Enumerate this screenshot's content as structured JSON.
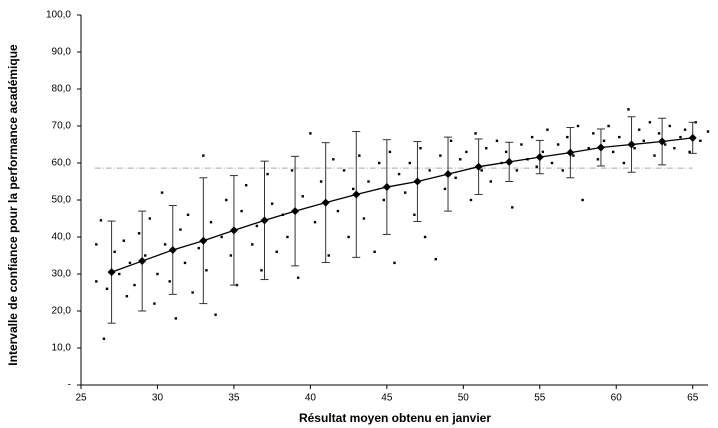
{
  "chart_data": {
    "type": "scatter",
    "x_label": "Résultat moyen obtenu en janvier",
    "y_label": "Intervalle de confiance pour la performance académique",
    "xlim": [
      25,
      66
    ],
    "xticks": [
      25,
      30,
      35,
      40,
      45,
      50,
      55,
      60,
      65
    ],
    "ylim": [
      0,
      100
    ],
    "yticks": [
      {
        "value": 0,
        "label": "-"
      },
      {
        "value": 10,
        "label": "10,0"
      },
      {
        "value": 20,
        "label": "20,0"
      },
      {
        "value": 30,
        "label": "30,0"
      },
      {
        "value": 40,
        "label": "40,0"
      },
      {
        "value": 50,
        "label": "50,0"
      },
      {
        "value": 60,
        "label": "60,0"
      },
      {
        "value": 70,
        "label": "70,0"
      },
      {
        "value": 80,
        "label": "80,0"
      },
      {
        "value": 90,
        "label": "90,0"
      },
      {
        "value": 100,
        "label": "100,0"
      }
    ],
    "reference_line": {
      "value": 58.6,
      "x": [
        25.9,
        65
      ],
      "color": "#aaaaaa"
    },
    "points": {
      "color": "#000000",
      "x": [
        26,
        26,
        26.3,
        26.5,
        26.7,
        27.2,
        27.5,
        27.8,
        28,
        28.2,
        28.5,
        28.8,
        29.2,
        29.5,
        29.8,
        30,
        30.3,
        30.5,
        30.8,
        31.2,
        31.5,
        31.8,
        32,
        32.3,
        32.7,
        33,
        33.2,
        33.5,
        33.8,
        34.2,
        34.5,
        34.8,
        35.2,
        35.5,
        35.8,
        36.2,
        36.5,
        36.8,
        37.2,
        37.5,
        37.8,
        38.2,
        38.5,
        38.8,
        39.2,
        39.5,
        40,
        40.3,
        40.7,
        41.2,
        41.5,
        41.8,
        42.2,
        42.5,
        42.8,
        43.2,
        43.5,
        43.8,
        44.2,
        44.5,
        44.8,
        45.2,
        45.5,
        45.8,
        46.2,
        46.5,
        46.8,
        47.2,
        47.5,
        47.8,
        48.2,
        48.5,
        48.8,
        49.2,
        49.5,
        49.8,
        50.2,
        50.5,
        50.8,
        51.2,
        51.5,
        51.8,
        52.2,
        52.5,
        52.8,
        53.2,
        53.5,
        53.8,
        54.2,
        54.5,
        54.8,
        55.2,
        55.5,
        55.8,
        56.2,
        56.5,
        56.8,
        57.2,
        57.5,
        57.8,
        58.2,
        58.5,
        58.8,
        59.2,
        59.5,
        59.8,
        60.2,
        60.5,
        60.8,
        61.2,
        61.5,
        61.8,
        62.2,
        62.5,
        62.8,
        63.2,
        63.5,
        63.8,
        64.2,
        64.5,
        64.8,
        65.2,
        65.5,
        66
      ],
      "y": [
        28,
        38,
        44.5,
        12.5,
        26,
        36,
        30,
        39,
        24,
        33,
        27,
        41,
        35,
        45,
        22,
        30,
        52,
        38,
        28,
        18,
        42,
        33,
        46,
        25,
        37,
        62,
        31,
        44,
        19,
        40,
        50,
        35,
        27,
        47,
        54,
        38,
        43,
        31,
        57,
        49,
        36,
        46,
        40,
        58,
        29,
        51,
        68,
        44,
        55,
        35,
        61,
        47,
        58,
        40,
        53,
        62,
        45,
        55,
        36,
        60,
        50,
        63,
        33,
        57,
        52,
        60,
        46,
        64,
        40,
        58,
        34,
        62,
        53,
        66,
        56,
        61,
        63,
        50,
        68,
        58,
        64,
        55,
        66,
        60,
        63,
        48,
        58,
        65,
        61,
        67,
        59,
        63,
        69,
        60,
        65,
        58,
        67,
        62,
        70,
        50,
        64,
        68,
        61,
        66,
        70,
        63,
        67,
        60,
        74.5,
        64,
        69,
        66,
        71,
        62,
        68,
        65,
        70,
        64,
        67,
        69,
        63,
        71,
        66,
        68.5
      ]
    },
    "means": {
      "color": "#000000",
      "x": [
        27,
        29,
        31,
        33,
        35,
        37,
        39,
        41,
        43,
        45,
        47,
        49,
        51,
        53,
        55,
        57,
        59,
        61,
        63,
        65
      ],
      "values": [
        30.5,
        33.5,
        36.5,
        39,
        41.8,
        44.5,
        47,
        49.3,
        51.5,
        53.5,
        55,
        57,
        59,
        60.3,
        61.6,
        62.8,
        64.2,
        65,
        65.8,
        66.8
      ],
      "errors": [
        13.8,
        13.5,
        12,
        17,
        14.8,
        16,
        14.8,
        16.2,
        17,
        12.8,
        10.8,
        10,
        7.5,
        5.3,
        4.5,
        6.8,
        5,
        7.5,
        6.3,
        4.2
      ]
    }
  }
}
